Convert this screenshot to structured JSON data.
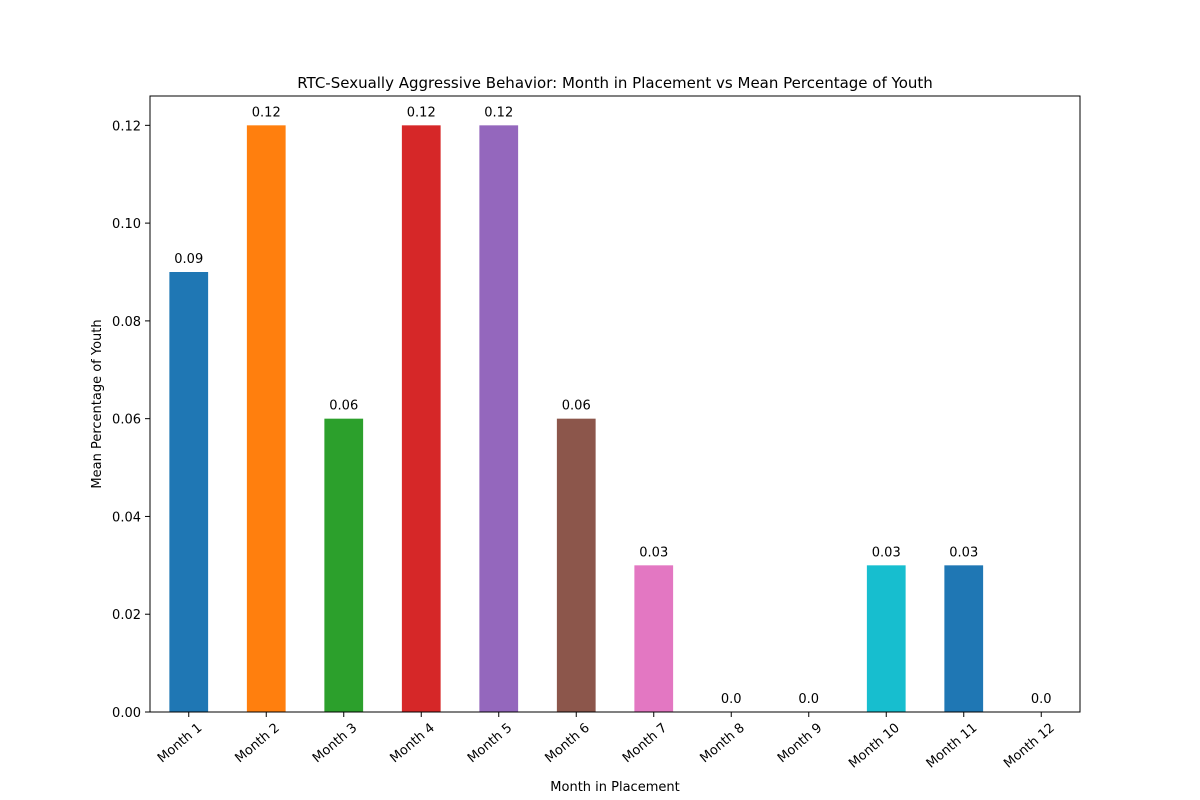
{
  "chart_data": {
    "type": "bar",
    "title": "RTC-Sexually Aggressive Behavior: Month in Placement vs Mean Percentage of Youth",
    "xlabel": "Month in Placement",
    "ylabel": "Mean Percentage of Youth",
    "categories": [
      "Month 1",
      "Month 2",
      "Month 3",
      "Month 4",
      "Month 5",
      "Month 6",
      "Month 7",
      "Month 8",
      "Month 9",
      "Month 10",
      "Month 11",
      "Month 12"
    ],
    "values": [
      0.09,
      0.12,
      0.06,
      0.12,
      0.12,
      0.06,
      0.03,
      0.0,
      0.0,
      0.03,
      0.03,
      0.0
    ],
    "data_labels": [
      "0.09",
      "0.12",
      "0.06",
      "0.12",
      "0.12",
      "0.06",
      "0.03",
      "0.0",
      "0.0",
      "0.03",
      "0.03",
      "0.0"
    ],
    "colors": [
      "#1f77b4",
      "#ff7f0e",
      "#2ca02c",
      "#d62728",
      "#9467bd",
      "#8c564b",
      "#e377c2",
      "#7f7f7f",
      "#bcbd22",
      "#17becf",
      "#1f77b4",
      "#ff7f0e"
    ],
    "ylim": [
      0,
      0.126
    ],
    "yticks": [
      0.0,
      0.02,
      0.04,
      0.06,
      0.08,
      0.1,
      0.12
    ],
    "ytick_labels": [
      "0.00",
      "0.02",
      "0.04",
      "0.06",
      "0.08",
      "0.10",
      "0.12"
    ],
    "xtick_rotation_deg": 40,
    "grid": false,
    "legend": "none"
  }
}
